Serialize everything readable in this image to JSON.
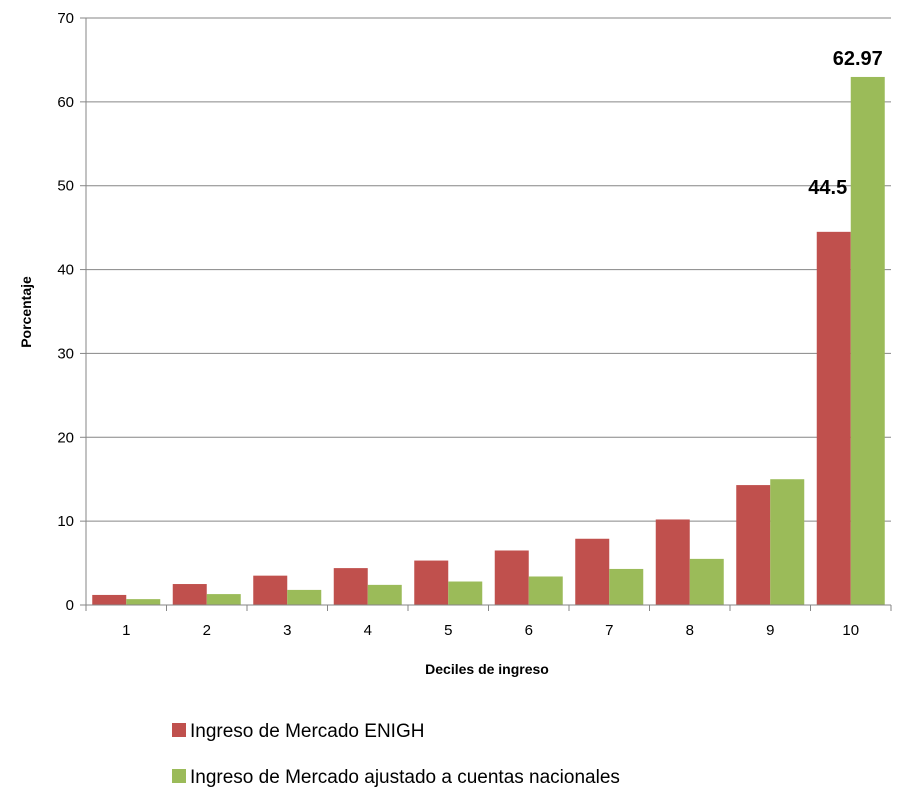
{
  "chart_data": {
    "type": "bar",
    "xlabel": "Deciles de ingreso",
    "ylabel": "Porcentaje",
    "ylim": [
      0,
      70
    ],
    "yticks": [
      0,
      10,
      20,
      30,
      40,
      50,
      60,
      70
    ],
    "grid": true,
    "legend_position": "bottom",
    "categories": [
      "1",
      "2",
      "3",
      "4",
      "5",
      "6",
      "7",
      "8",
      "9",
      "10"
    ],
    "series": [
      {
        "name": "Ingreso de Mercado ENIGH",
        "color": "#C0504D",
        "values": [
          1.2,
          2.5,
          3.5,
          4.4,
          5.3,
          6.5,
          7.9,
          10.2,
          14.3,
          44.5
        ],
        "labels": [
          "",
          "",
          "",
          "",
          "",
          "",
          "",
          "",
          "",
          "44.5"
        ]
      },
      {
        "name": "Ingreso de Mercado ajustado a cuentas nacionales",
        "color": "#9BBB59",
        "values": [
          0.7,
          1.3,
          1.8,
          2.4,
          2.8,
          3.4,
          4.3,
          5.5,
          15.0,
          62.97
        ],
        "labels": [
          "",
          "",
          "",
          "",
          "",
          "",
          "",
          "",
          "",
          "62.97"
        ]
      }
    ]
  }
}
